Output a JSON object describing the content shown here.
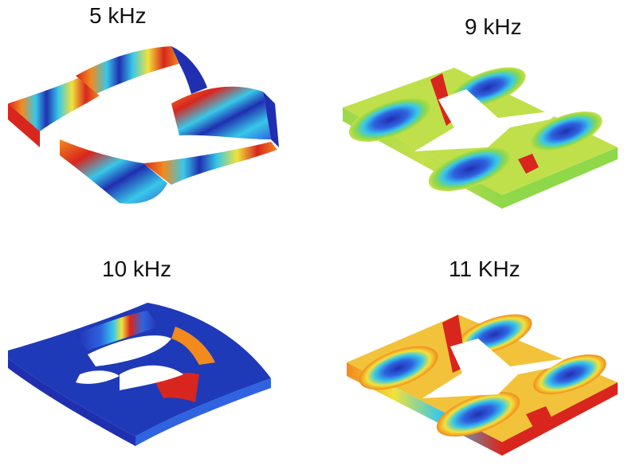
{
  "panels": [
    {
      "label": "5 kHz",
      "colormap": "jet",
      "pattern": "twisted-frame-wave"
    },
    {
      "label": "9 kHz",
      "colormap": "jet",
      "pattern": "flat-plate-lobes"
    },
    {
      "label": "10 kHz",
      "colormap": "jet",
      "pattern": "warped-plate-blue"
    },
    {
      "label": "11 KHz",
      "colormap": "jet",
      "pattern": "plate-lobes-warm"
    }
  ],
  "palette": {
    "deep_blue": "#1f2fb0",
    "blue": "#2f63e0",
    "cyan": "#38c8e8",
    "green": "#8fd84a",
    "yellow": "#f2e23a",
    "orange": "#f28a1e",
    "red": "#d8261e"
  }
}
